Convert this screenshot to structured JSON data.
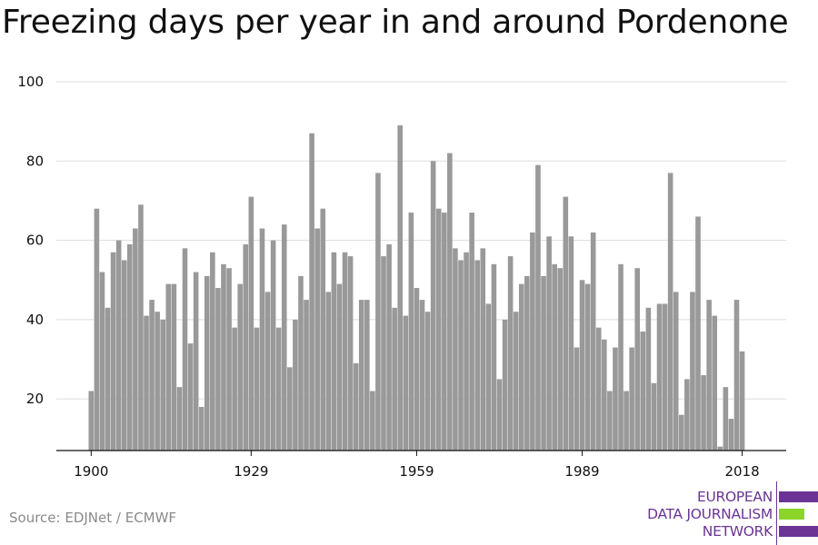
{
  "colors": {
    "bar": "#999999",
    "grid": "#dddddd",
    "axis": "#111111",
    "logo_purple": "#6b3494",
    "logo_green": "#8cd42a"
  },
  "source": "Source: EDJNet / ECMWF",
  "logo": {
    "line1": "EUROPEAN",
    "line2": "DATA JOURNALISM",
    "line3": "NETWORK"
  },
  "chart_data": {
    "type": "bar",
    "title": "Freezing days per year in and around Pordenone",
    "xlabel": "",
    "ylabel": "",
    "grid": true,
    "legend": "none",
    "ylim": [
      7,
      100
    ],
    "yticks": [
      20,
      40,
      60,
      80,
      100
    ],
    "xticks": [
      1900,
      1929,
      1959,
      1989,
      2018
    ],
    "x_start": 1900,
    "x_end": 2018,
    "values": [
      22,
      68,
      52,
      43,
      57,
      60,
      55,
      59,
      63,
      69,
      41,
      45,
      42,
      40,
      49,
      49,
      23,
      58,
      34,
      52,
      18,
      51,
      57,
      48,
      54,
      53,
      38,
      49,
      59,
      71,
      38,
      63,
      47,
      60,
      38,
      64,
      28,
      40,
      51,
      45,
      87,
      63,
      68,
      47,
      57,
      49,
      57,
      56,
      29,
      45,
      45,
      22,
      77,
      56,
      59,
      43,
      89,
      41,
      67,
      48,
      45,
      42,
      80,
      68,
      67,
      82,
      58,
      55,
      57,
      67,
      55,
      58,
      44,
      54,
      25,
      40,
      56,
      42,
      49,
      51,
      62,
      79,
      51,
      61,
      54,
      53,
      71,
      61,
      33,
      50,
      49,
      62,
      38,
      35,
      22,
      33,
      54,
      22,
      33,
      53,
      37,
      43,
      24,
      44,
      44,
      77,
      47,
      16,
      25,
      47,
      66,
      26,
      45,
      41,
      8,
      23,
      15,
      45,
      32
    ]
  }
}
